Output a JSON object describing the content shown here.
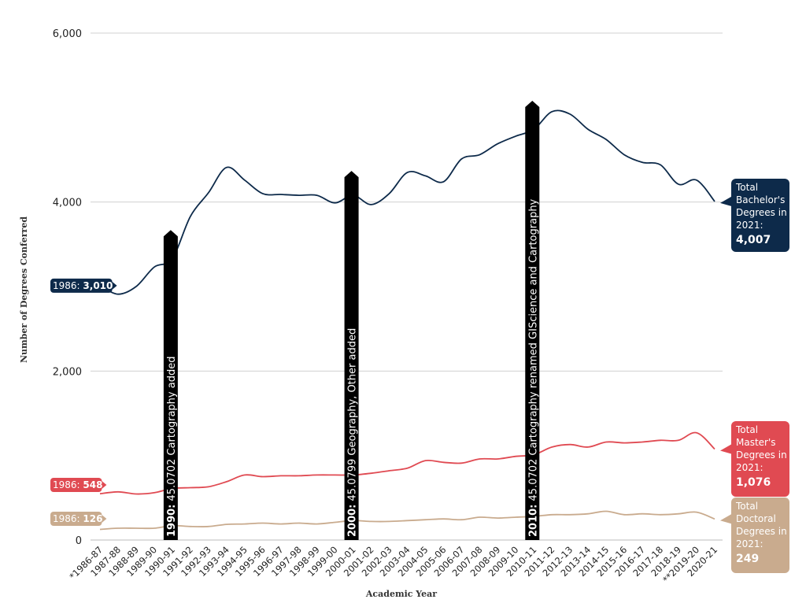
{
  "chart_data": {
    "type": "line",
    "xlabel": "Academic Year",
    "ylabel": "Number of Degrees Conferred",
    "ylim": [
      0,
      6000
    ],
    "yticks": [
      0,
      2000,
      4000,
      6000
    ],
    "ytick_labels": [
      "0",
      "2,000",
      "4,000",
      "6,000"
    ],
    "grid": true,
    "categories": [
      "*1986-87",
      "1987-88",
      "1988-89",
      "1989-90",
      "1990-91",
      "1991-92",
      "1992-93",
      "1993-94",
      "1994-95",
      "1995-96",
      "1996-97",
      "1997-98",
      "1998-99",
      "1999-00",
      "2000-01",
      "2001-02",
      "2002-03",
      "2003-04",
      "2004-05",
      "2005-06",
      "2006-07",
      "2007-08",
      "2008-09",
      "2009-10",
      "2010-11",
      "2011-12",
      "2012-13",
      "2013-14",
      "2014-15",
      "2015-16",
      "2016-17",
      "2017-18",
      "2018-19",
      "**2019-20",
      "2020-21"
    ],
    "series": [
      {
        "name": "Bachelor's",
        "color": "#0d2a4a",
        "values": [
          3010,
          2910,
          3000,
          3230,
          3330,
          3830,
          4110,
          4410,
          4260,
          4100,
          4090,
          4080,
          4080,
          3990,
          4080,
          3970,
          4100,
          4350,
          4310,
          4240,
          4510,
          4560,
          4690,
          4780,
          4860,
          5070,
          5040,
          4860,
          4740,
          4560,
          4470,
          4440,
          4210,
          4260,
          4007
        ],
        "start_label_prefix": "1986:",
        "start_label_value": "3,010",
        "end_box": {
          "lines": [
            "Total",
            "Bachelor's",
            "Degrees in",
            "2021:"
          ],
          "value": "4,007"
        }
      },
      {
        "name": "Master's",
        "color": "#e04a52",
        "values": [
          548,
          570,
          545,
          560,
          610,
          620,
          630,
          690,
          770,
          750,
          760,
          760,
          770,
          770,
          770,
          790,
          820,
          850,
          940,
          920,
          910,
          960,
          960,
          990,
          1010,
          1100,
          1130,
          1100,
          1160,
          1150,
          1160,
          1180,
          1180,
          1270,
          1076
        ],
        "start_label_prefix": "1986:",
        "start_label_value": "548",
        "end_box": {
          "lines": [
            "Total",
            "Master's",
            "Degrees in",
            "2021:"
          ],
          "value": "1,076"
        }
      },
      {
        "name": "Doctoral",
        "color": "#c9ab8e",
        "values": [
          126,
          140,
          140,
          140,
          170,
          160,
          160,
          185,
          190,
          200,
          190,
          200,
          190,
          210,
          230,
          220,
          220,
          230,
          240,
          250,
          240,
          270,
          260,
          270,
          280,
          300,
          300,
          310,
          340,
          300,
          310,
          300,
          310,
          330,
          249
        ],
        "start_label_prefix": "1986:",
        "start_label_value": "126",
        "end_box": {
          "lines": [
            "Total",
            "Doctoral",
            "Degrees in",
            "2021:"
          ],
          "value": "249"
        }
      }
    ],
    "annotations": [
      {
        "category_index": 4,
        "top_value": 3650,
        "year": "1990:",
        "text": "45.0702 Cartography added"
      },
      {
        "category_index": 14,
        "top_value": 4350,
        "year": "2000:",
        "text": "45.0799 Geography, Other added"
      },
      {
        "category_index": 24,
        "top_value": 5180,
        "year": "2010:",
        "text": "45.0702 Cartography renamed GIScience and Cartography"
      }
    ]
  }
}
